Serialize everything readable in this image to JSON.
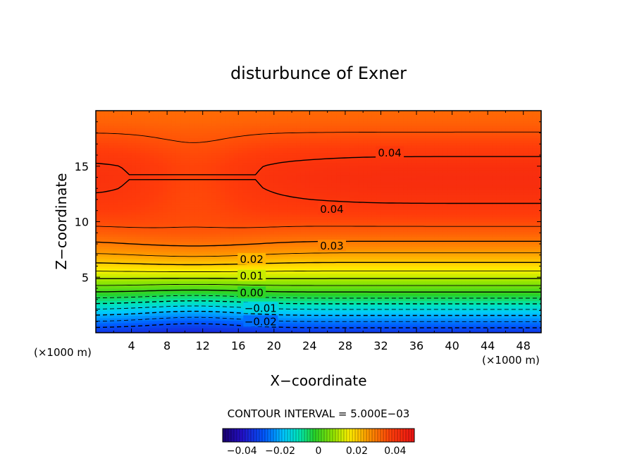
{
  "chart_data": {
    "type": "heatmap",
    "subtype": "filled-contour",
    "title": "disturbunce of Exner",
    "xlabel": "X−coordinate",
    "ylabel": "Z−coordinate",
    "x_unit_left": "(×1000 m)",
    "x_unit_right": "(×1000 m)",
    "xlim": [
      0,
      50
    ],
    "ylim": [
      0,
      20
    ],
    "xticks": [
      4,
      8,
      12,
      16,
      20,
      24,
      28,
      32,
      36,
      40,
      44,
      48
    ],
    "xtick_labels": [
      "4",
      "8",
      "12",
      "16",
      "20",
      "24",
      "28",
      "32",
      "36",
      "40",
      "44",
      "48"
    ],
    "yticks": [
      5,
      10,
      15
    ],
    "ytick_labels": [
      "5",
      "10",
      "15"
    ],
    "field_profile": {
      "z": [
        0,
        1,
        2,
        3,
        4,
        5,
        6,
        7,
        8,
        9,
        10,
        11,
        12,
        13,
        14,
        15,
        16,
        17,
        18,
        19,
        20
      ],
      "value": [
        -0.034,
        -0.025,
        -0.016,
        -0.006,
        0.003,
        0.011,
        0.018,
        0.024,
        0.029,
        0.033,
        0.036,
        0.038,
        0.0395,
        0.0405,
        0.041,
        0.0405,
        0.039,
        0.037,
        0.035,
        0.033,
        0.032
      ]
    },
    "contour_interval": 0.005,
    "contour_levels": [
      -0.03,
      -0.025,
      -0.02,
      -0.015,
      -0.01,
      -0.005,
      0.0,
      0.005,
      0.01,
      0.015,
      0.02,
      0.025,
      0.03,
      0.035,
      0.04
    ],
    "contour_labels": [
      {
        "text": "0.04",
        "x": 33,
        "z": 16.2
      },
      {
        "text": "0.04",
        "x": 26.5,
        "z": 11.1
      },
      {
        "text": "0.03",
        "x": 26.5,
        "z": 7.8
      },
      {
        "text": "0.02",
        "x": 17.5,
        "z": 6.6
      },
      {
        "text": "0.01",
        "x": 17.5,
        "z": 5.1
      },
      {
        "text": "0.00",
        "x": 17.5,
        "z": 3.6
      },
      {
        "text": "−0.01",
        "x": 18.5,
        "z": 2.2
      },
      {
        "text": "−0.02",
        "x": 18.5,
        "z": 1.0
      }
    ],
    "contour_interval_text": "CONTOUR INTERVAL = 5.000E−03",
    "colorbar": {
      "min": -0.05,
      "max": 0.05,
      "tick_values": [
        -0.04,
        -0.02,
        0,
        0.02,
        0.04
      ],
      "tick_labels": [
        "−0.04",
        "−0.02",
        "0",
        "0.02",
        "0.04"
      ]
    }
  }
}
